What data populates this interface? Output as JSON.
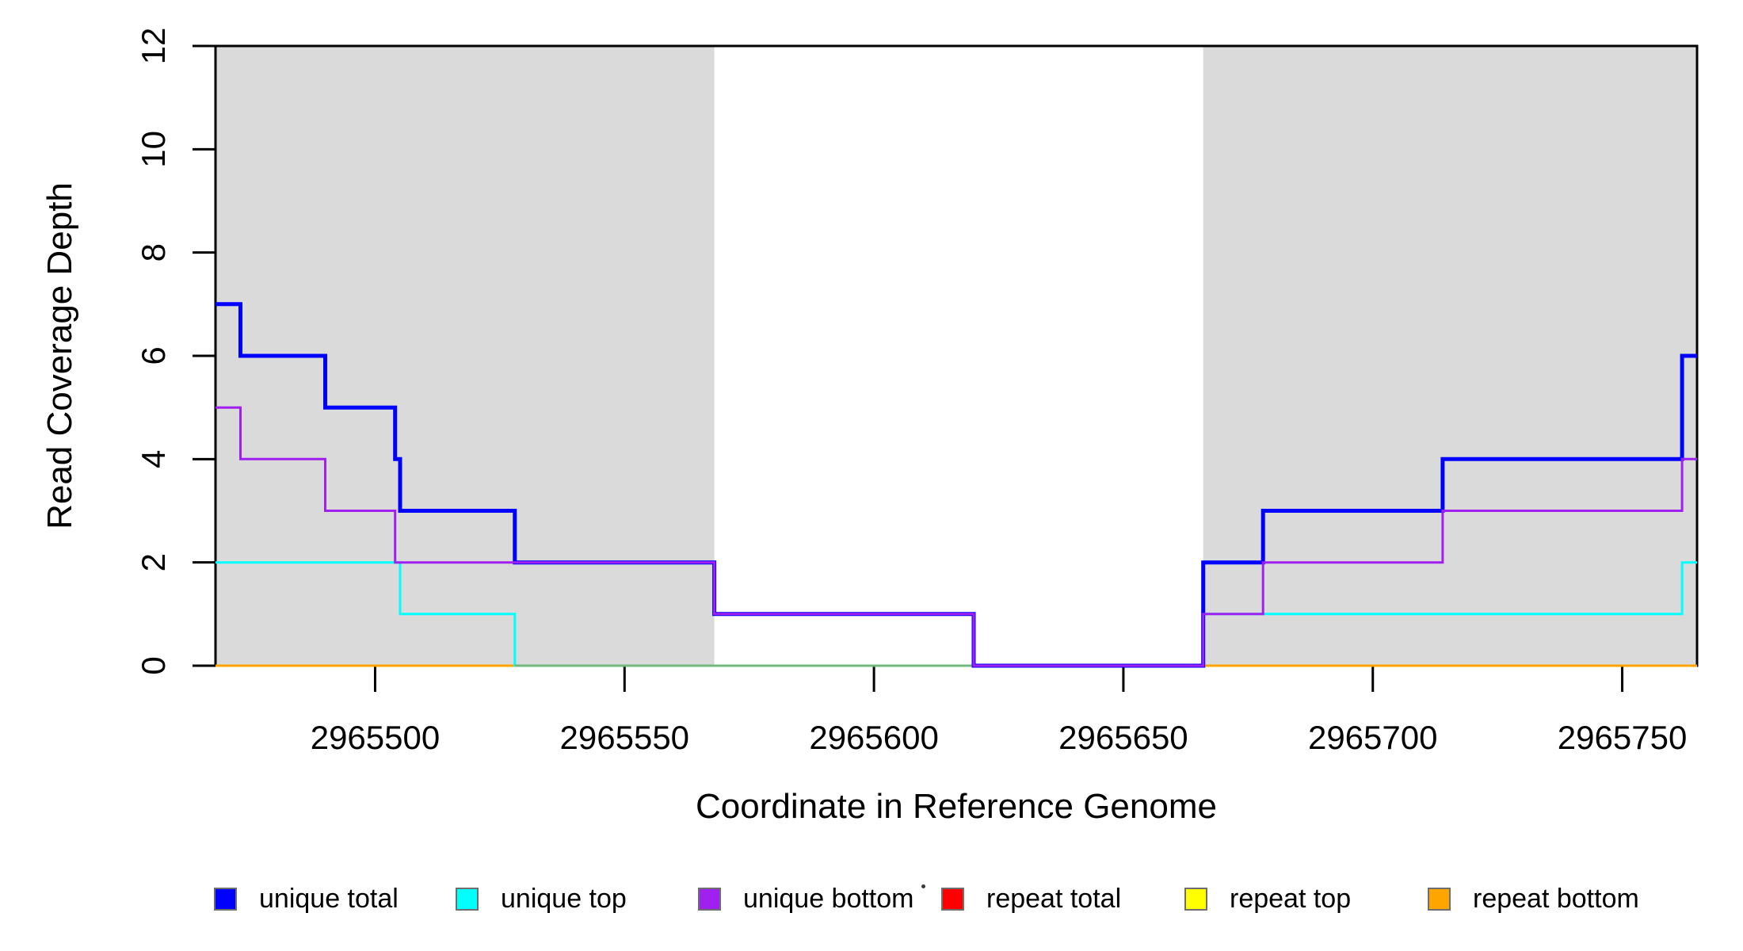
{
  "figure": {
    "xlabel": "Coordinate in Reference Genome",
    "ylabel": "Read Coverage Depth",
    "background_color": "#ffffff",
    "shade_color": "#dadada",
    "axis_color": "#000000"
  },
  "chart_data": {
    "type": "line",
    "subtype": "step",
    "title": "",
    "xlabel": "Coordinate in Reference Genome",
    "ylabel": "Read Coverage Depth",
    "xlim": [
      2965468,
      2965765
    ],
    "ylim": [
      0,
      12
    ],
    "x_ticks": [
      2965500,
      2965550,
      2965600,
      2965650,
      2965700,
      2965750
    ],
    "y_ticks": [
      0,
      2,
      4,
      6,
      8,
      10,
      12
    ],
    "grid": false,
    "shaded_regions": [
      {
        "x_start": 2965468,
        "x_end": 2965568
      },
      {
        "x_start": 2965666,
        "x_end": 2965765
      }
    ],
    "series": [
      {
        "name": "repeat total",
        "color": "#FF0000",
        "line_width": 3,
        "steps": [
          [
            2965468,
            0
          ]
        ]
      },
      {
        "name": "repeat top",
        "color": "#FFFF00",
        "line_width": 3,
        "steps": [
          [
            2965468,
            0
          ]
        ]
      },
      {
        "name": "repeat bottom",
        "color": "#FFA500",
        "line_width": 3,
        "steps": [
          [
            2965468,
            0
          ]
        ]
      },
      {
        "name": "unique top",
        "color": "#00FFFF",
        "line_width": 3,
        "steps": [
          [
            2965468,
            2
          ],
          [
            2965505,
            1
          ],
          [
            2965528,
            0
          ],
          [
            2965666,
            1
          ],
          [
            2965762,
            2
          ]
        ]
      },
      {
        "name": "unique total",
        "color": "#0000FF",
        "line_width": 5,
        "steps": [
          [
            2965468,
            7
          ],
          [
            2965473,
            6
          ],
          [
            2965490,
            5
          ],
          [
            2965504,
            4
          ],
          [
            2965505,
            3
          ],
          [
            2965528,
            2
          ],
          [
            2965568,
            1
          ],
          [
            2965620,
            0
          ],
          [
            2965666,
            2
          ],
          [
            2965678,
            3
          ],
          [
            2965714,
            4
          ],
          [
            2965762,
            6
          ]
        ]
      },
      {
        "name": "unique bottom",
        "color": "#A020F0",
        "line_width": 3,
        "steps": [
          [
            2965468,
            5
          ],
          [
            2965473,
            4
          ],
          [
            2965490,
            3
          ],
          [
            2965504,
            2
          ],
          [
            2965568,
            1
          ],
          [
            2965620,
            0
          ],
          [
            2965666,
            1
          ],
          [
            2965678,
            2
          ],
          [
            2965714,
            3
          ],
          [
            2965762,
            4
          ]
        ]
      }
    ],
    "render_hints": {
      "zero_overlap_blend": {
        "x_start": 2965528,
        "x_end": 2965666,
        "value": 0,
        "color": "rgba(210,125,20,0.55)",
        "line_width": 3,
        "insert_before_series": "unique total"
      }
    },
    "legend_position": "bottom"
  },
  "legend": {
    "items": [
      {
        "label": "unique total",
        "color": "#0000FF"
      },
      {
        "label": "unique top",
        "color": "#00FFFF"
      },
      {
        "label": "unique bottom",
        "color": "#A020F0"
      },
      {
        "label": "repeat total",
        "color": "#FF0000"
      },
      {
        "label": "repeat top",
        "color": "#FFFF00"
      },
      {
        "label": "repeat bottom",
        "color": "#FFA500"
      }
    ]
  }
}
